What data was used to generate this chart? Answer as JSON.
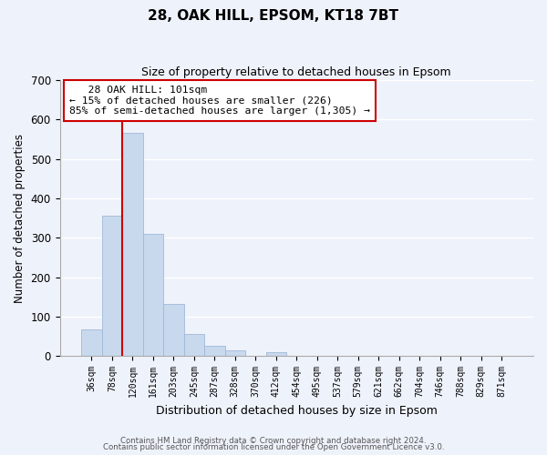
{
  "title": "28, OAK HILL, EPSOM, KT18 7BT",
  "subtitle": "Size of property relative to detached houses in Epsom",
  "xlabel": "Distribution of detached houses by size in Epsom",
  "ylabel": "Number of detached properties",
  "bar_labels": [
    "36sqm",
    "78sqm",
    "120sqm",
    "161sqm",
    "203sqm",
    "245sqm",
    "287sqm",
    "328sqm",
    "370sqm",
    "412sqm",
    "454sqm",
    "495sqm",
    "537sqm",
    "579sqm",
    "621sqm",
    "662sqm",
    "704sqm",
    "746sqm",
    "788sqm",
    "829sqm",
    "871sqm"
  ],
  "bar_values": [
    68,
    355,
    567,
    311,
    133,
    57,
    27,
    14,
    0,
    9,
    0,
    0,
    0,
    0,
    0,
    0,
    0,
    0,
    0,
    0,
    0
  ],
  "bar_color": "#c8d9ed",
  "bar_edge_color": "#a0b8d8",
  "vline_x": 1.5,
  "vline_color": "#cc0000",
  "ylim": [
    0,
    700
  ],
  "yticks": [
    0,
    100,
    200,
    300,
    400,
    500,
    600,
    700
  ],
  "annotation_title": "28 OAK HILL: 101sqm",
  "annotation_line1": "← 15% of detached houses are smaller (226)",
  "annotation_line2": "85% of semi-detached houses are larger (1,305) →",
  "annotation_box_color": "#ffffff",
  "annotation_border_color": "#cc0000",
  "footer_line1": "Contains HM Land Registry data © Crown copyright and database right 2024.",
  "footer_line2": "Contains public sector information licensed under the Open Government Licence v3.0.",
  "background_color": "#eef2fb",
  "grid_color": "#ffffff"
}
